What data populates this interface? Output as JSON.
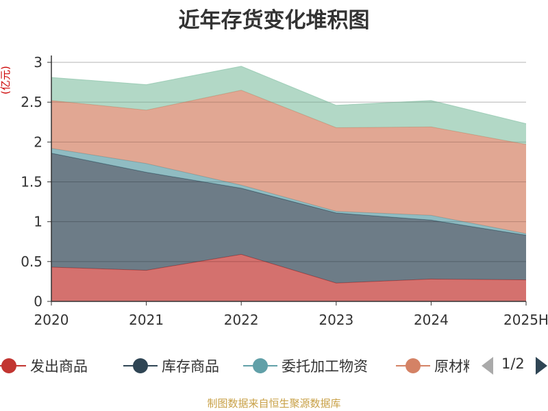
{
  "title": "近年存货变化堆积图",
  "source": "制图数据来自恒生聚源数据库",
  "pager": {
    "text": "1/2"
  },
  "chart_data": {
    "type": "area",
    "stacked": true,
    "unit": "(亿元)",
    "categories": [
      "2020",
      "2021",
      "2022",
      "2023",
      "2024",
      "2025H"
    ],
    "ylim": [
      0,
      3
    ],
    "yticks": [
      "0",
      "0.5",
      "1",
      "1.5",
      "2",
      "2.5",
      "3"
    ],
    "grid": true,
    "legend_position": "bottom",
    "series": [
      {
        "name": "发出商品",
        "color": "#c23531",
        "values": [
          0.43,
          0.39,
          0.59,
          0.23,
          0.28,
          0.27
        ]
      },
      {
        "name": "库存商品",
        "color": "#2f4554",
        "values": [
          1.43,
          1.23,
          0.83,
          0.88,
          0.74,
          0.56
        ]
      },
      {
        "name": "委托加工物资",
        "color": "#61a0a8",
        "values": [
          0.06,
          0.11,
          0.04,
          0.02,
          0.06,
          0.02
        ]
      },
      {
        "name": "原材料",
        "color": "#d48265",
        "values": [
          0.6,
          0.67,
          1.19,
          1.05,
          1.11,
          1.12
        ]
      },
      {
        "color": "#91c7ae",
        "values": [
          0.29,
          0.32,
          0.3,
          0.28,
          0.33,
          0.26
        ]
      }
    ]
  }
}
